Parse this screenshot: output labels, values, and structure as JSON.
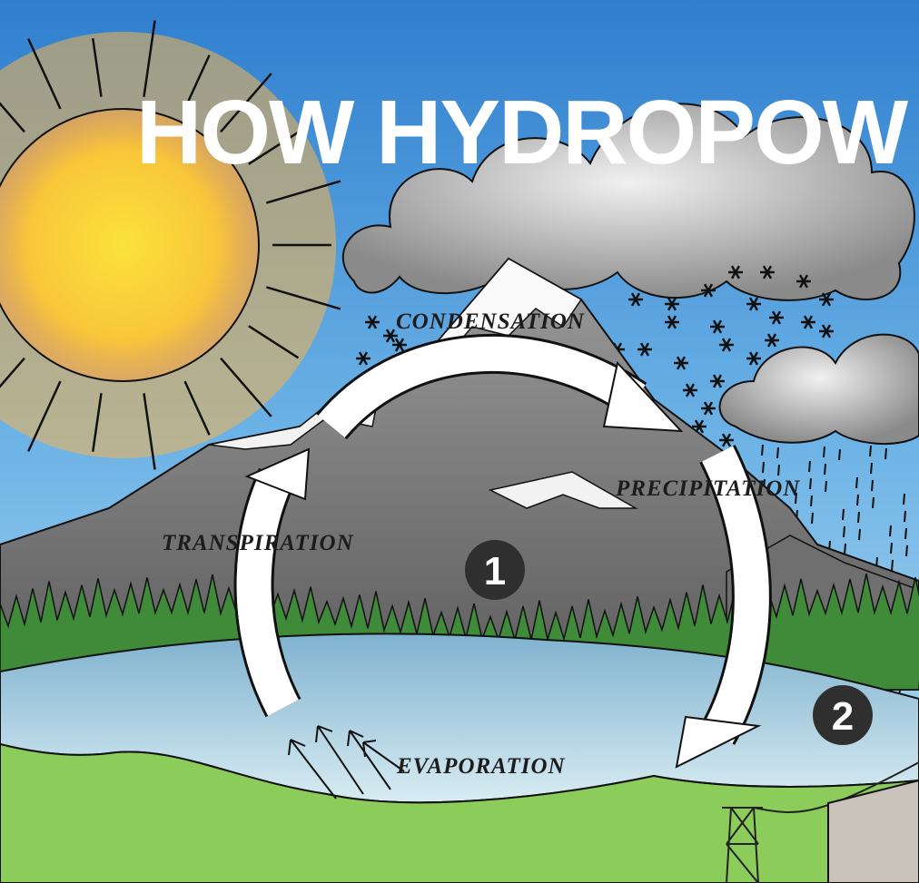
{
  "title": "HOW HYDROPOW",
  "labels": {
    "condensation": "CONDENSATION",
    "precipitation": "PRECIPITATION",
    "transpiration": "TRANSPIRATION",
    "evaporation": "EVAPORATION"
  },
  "markers": [
    "1",
    "2"
  ]
}
